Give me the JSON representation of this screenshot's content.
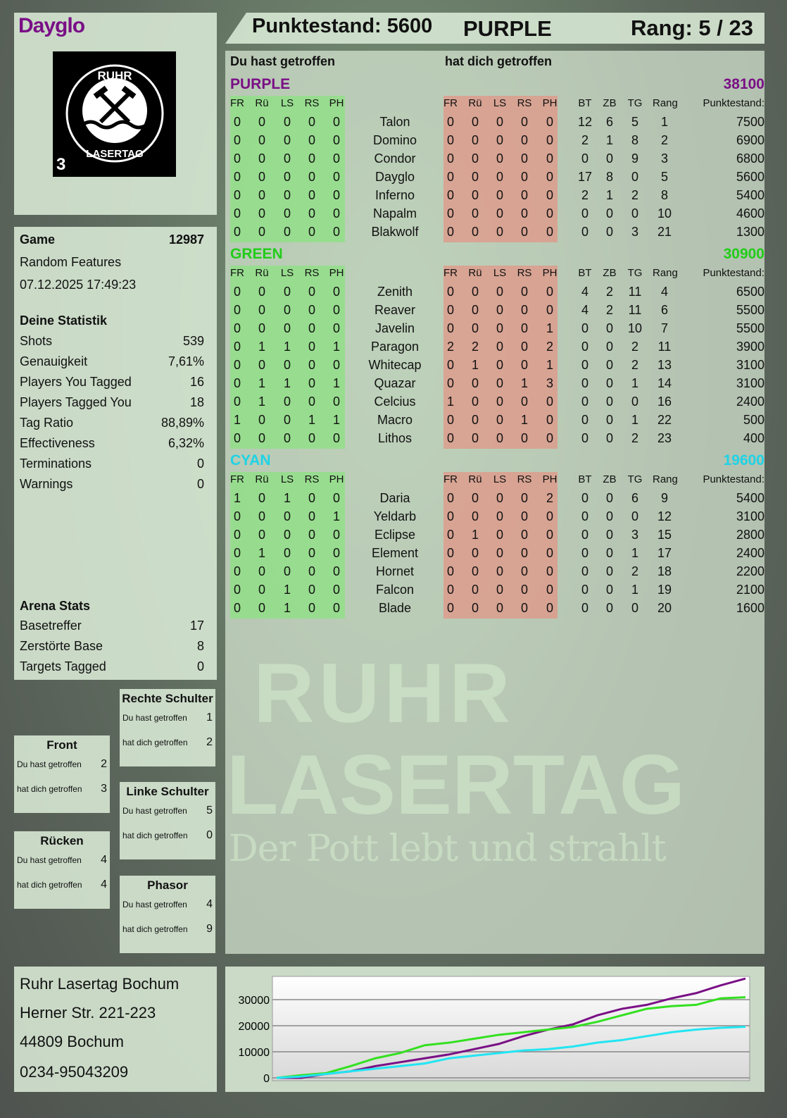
{
  "player": {
    "name": "Dayglo",
    "name_color": "#7a0f86"
  },
  "header": {
    "score": "Punktestand: 5600",
    "team": "PURPLE",
    "rank": "Rang: 5 / 23"
  },
  "logo": {
    "text_top": "RUHR",
    "text_bottom": "LASERTAG",
    "number": "3"
  },
  "watermark": {
    "line1": "RUHR",
    "line2": "LASERTAG",
    "line3": "Der Pott lebt und strahlt"
  },
  "game": {
    "label": "Game",
    "id": "12987",
    "mode": "Random Features",
    "datetime": "07.12.2025 17:49:23"
  },
  "stats": {
    "title": "Deine Statistik",
    "items": [
      {
        "label": "Shots",
        "value": "539"
      },
      {
        "label": "Genauigkeit",
        "value": "7,61%"
      },
      {
        "label": "Players You Tagged",
        "value": "16"
      },
      {
        "label": "Players Tagged You",
        "value": "18"
      },
      {
        "label": "Tag Ratio",
        "value": "88,89%"
      },
      {
        "label": "Effectiveness",
        "value": "6,32%"
      },
      {
        "label": "Terminations",
        "value": "0"
      },
      {
        "label": "Warnings",
        "value": "0"
      }
    ]
  },
  "arena": {
    "title": "Arena Stats",
    "items": [
      {
        "label": "Basetreffer",
        "value": "17"
      },
      {
        "label": "Zerstörte Base",
        "value": "8"
      },
      {
        "label": "Targets Tagged",
        "value": "0"
      }
    ]
  },
  "body_parts": [
    {
      "title": "Rechte Schulter",
      "you_hit_label": "Du hast getroffen",
      "you_hit": "1",
      "hit_you_label": "hat dich getroffen",
      "hit_you": "2"
    },
    {
      "title": "Front",
      "you_hit_label": "Du hast getroffen",
      "you_hit": "2",
      "hit_you_label": "hat dich getroffen",
      "hit_you": "3"
    },
    {
      "title": "Linke Schulter",
      "you_hit_label": "Du hast getroffen",
      "you_hit": "5",
      "hit_you_label": "hat dich getroffen",
      "hit_you": "0"
    },
    {
      "title": "Rücken",
      "you_hit_label": "Du hast getroffen",
      "you_hit": "4",
      "hit_you_label": "hat dich getroffen",
      "hit_you": "4"
    },
    {
      "title": "Phasor",
      "you_hit_label": "Du hast getroffen",
      "you_hit": "4",
      "hit_you_label": "hat dich getroffen",
      "hit_you": "9"
    }
  ],
  "address": {
    "line1": "Ruhr Lasertag Bochum",
    "line2": "Herner Str. 221-223",
    "line3": "44809 Bochum",
    "line4": "0234-95043209"
  },
  "table": {
    "you_hit_label": "Du hast getroffen",
    "hit_you_label": "hat dich getroffen",
    "columns": {
      "hits": [
        "FR",
        "Rü",
        "LS",
        "RS",
        "PH"
      ],
      "stats": [
        "BT",
        "ZB",
        "TG",
        "Rang"
      ],
      "score": "Punktestand:"
    },
    "teams": [
      {
        "name": "PURPLE",
        "score": "38100",
        "color": "#7a0f86",
        "players": [
          {
            "name": "Talon",
            "hit": [
              0,
              0,
              0,
              0,
              0
            ],
            "got": [
              0,
              0,
              0,
              0,
              0
            ],
            "bt": 12,
            "zb": 6,
            "tg": 5,
            "rang": 1,
            "score": 7500
          },
          {
            "name": "Domino",
            "hit": [
              0,
              0,
              0,
              0,
              0
            ],
            "got": [
              0,
              0,
              0,
              0,
              0
            ],
            "bt": 2,
            "zb": 1,
            "tg": 8,
            "rang": 2,
            "score": 6900
          },
          {
            "name": "Condor",
            "hit": [
              0,
              0,
              0,
              0,
              0
            ],
            "got": [
              0,
              0,
              0,
              0,
              0
            ],
            "bt": 0,
            "zb": 0,
            "tg": 9,
            "rang": 3,
            "score": 6800
          },
          {
            "name": "Dayglo",
            "hit": [
              0,
              0,
              0,
              0,
              0
            ],
            "got": [
              0,
              0,
              0,
              0,
              0
            ],
            "bt": 17,
            "zb": 8,
            "tg": 0,
            "rang": 5,
            "score": 5600
          },
          {
            "name": "Inferno",
            "hit": [
              0,
              0,
              0,
              0,
              0
            ],
            "got": [
              0,
              0,
              0,
              0,
              0
            ],
            "bt": 2,
            "zb": 1,
            "tg": 2,
            "rang": 8,
            "score": 5400
          },
          {
            "name": "Napalm",
            "hit": [
              0,
              0,
              0,
              0,
              0
            ],
            "got": [
              0,
              0,
              0,
              0,
              0
            ],
            "bt": 0,
            "zb": 0,
            "tg": 0,
            "rang": 10,
            "score": 4600
          },
          {
            "name": "Blakwolf",
            "hit": [
              0,
              0,
              0,
              0,
              0
            ],
            "got": [
              0,
              0,
              0,
              0,
              0
            ],
            "bt": 0,
            "zb": 0,
            "tg": 3,
            "rang": 21,
            "score": 1300
          }
        ]
      },
      {
        "name": "GREEN",
        "score": "30900",
        "color": "#22cc1a",
        "players": [
          {
            "name": "Zenith",
            "hit": [
              0,
              0,
              0,
              0,
              0
            ],
            "got": [
              0,
              0,
              0,
              0,
              0
            ],
            "bt": 4,
            "zb": 2,
            "tg": 11,
            "rang": 4,
            "score": 6500
          },
          {
            "name": "Reaver",
            "hit": [
              0,
              0,
              0,
              0,
              0
            ],
            "got": [
              0,
              0,
              0,
              0,
              0
            ],
            "bt": 4,
            "zb": 2,
            "tg": 11,
            "rang": 6,
            "score": 5500
          },
          {
            "name": "Javelin",
            "hit": [
              0,
              0,
              0,
              0,
              0
            ],
            "got": [
              0,
              0,
              0,
              0,
              1
            ],
            "bt": 0,
            "zb": 0,
            "tg": 10,
            "rang": 7,
            "score": 5500
          },
          {
            "name": "Paragon",
            "hit": [
              0,
              1,
              1,
              0,
              1
            ],
            "got": [
              2,
              2,
              0,
              0,
              2
            ],
            "bt": 0,
            "zb": 0,
            "tg": 2,
            "rang": 11,
            "score": 3900
          },
          {
            "name": "Whitecap",
            "hit": [
              0,
              0,
              0,
              0,
              0
            ],
            "got": [
              0,
              1,
              0,
              0,
              1
            ],
            "bt": 0,
            "zb": 0,
            "tg": 2,
            "rang": 13,
            "score": 3100
          },
          {
            "name": "Quazar",
            "hit": [
              0,
              1,
              1,
              0,
              1
            ],
            "got": [
              0,
              0,
              0,
              1,
              3
            ],
            "bt": 0,
            "zb": 0,
            "tg": 1,
            "rang": 14,
            "score": 3100
          },
          {
            "name": "Celcius",
            "hit": [
              0,
              1,
              0,
              0,
              0
            ],
            "got": [
              1,
              0,
              0,
              0,
              0
            ],
            "bt": 0,
            "zb": 0,
            "tg": 0,
            "rang": 16,
            "score": 2400
          },
          {
            "name": "Macro",
            "hit": [
              1,
              0,
              0,
              1,
              1
            ],
            "got": [
              0,
              0,
              0,
              1,
              0
            ],
            "bt": 0,
            "zb": 0,
            "tg": 1,
            "rang": 22,
            "score": 500
          },
          {
            "name": "Lithos",
            "hit": [
              0,
              0,
              0,
              0,
              0
            ],
            "got": [
              0,
              0,
              0,
              0,
              0
            ],
            "bt": 0,
            "zb": 0,
            "tg": 2,
            "rang": 23,
            "score": 400
          }
        ]
      },
      {
        "name": "CYAN",
        "score": "19600",
        "color": "#1ed3e6",
        "players": [
          {
            "name": "Daria",
            "hit": [
              1,
              0,
              1,
              0,
              0
            ],
            "got": [
              0,
              0,
              0,
              0,
              2
            ],
            "bt": 0,
            "zb": 0,
            "tg": 6,
            "rang": 9,
            "score": 5400
          },
          {
            "name": "Yeldarb",
            "hit": [
              0,
              0,
              0,
              0,
              1
            ],
            "got": [
              0,
              0,
              0,
              0,
              0
            ],
            "bt": 0,
            "zb": 0,
            "tg": 0,
            "rang": 12,
            "score": 3100
          },
          {
            "name": "Eclipse",
            "hit": [
              0,
              0,
              0,
              0,
              0
            ],
            "got": [
              0,
              1,
              0,
              0,
              0
            ],
            "bt": 0,
            "zb": 0,
            "tg": 3,
            "rang": 15,
            "score": 2800
          },
          {
            "name": "Element",
            "hit": [
              0,
              1,
              0,
              0,
              0
            ],
            "got": [
              0,
              0,
              0,
              0,
              0
            ],
            "bt": 0,
            "zb": 0,
            "tg": 1,
            "rang": 17,
            "score": 2400
          },
          {
            "name": "Hornet",
            "hit": [
              0,
              0,
              0,
              0,
              0
            ],
            "got": [
              0,
              0,
              0,
              0,
              0
            ],
            "bt": 0,
            "zb": 0,
            "tg": 2,
            "rang": 18,
            "score": 2200
          },
          {
            "name": "Falcon",
            "hit": [
              0,
              0,
              1,
              0,
              0
            ],
            "got": [
              0,
              0,
              0,
              0,
              0
            ],
            "bt": 0,
            "zb": 0,
            "tg": 1,
            "rang": 19,
            "score": 2100
          },
          {
            "name": "Blade",
            "hit": [
              0,
              0,
              1,
              0,
              0
            ],
            "got": [
              0,
              0,
              0,
              0,
              0
            ],
            "bt": 0,
            "zb": 0,
            "tg": 0,
            "rang": 20,
            "score": 1600
          }
        ]
      }
    ]
  },
  "chart_data": {
    "type": "line",
    "title": "",
    "xlabel": "",
    "ylabel": "",
    "ylim": [
      0,
      40000
    ],
    "yticks": [
      0,
      10000,
      20000,
      30000
    ],
    "grid": true,
    "legend": "none",
    "x": [
      0,
      1,
      2,
      3,
      4,
      5,
      6,
      7,
      8,
      9,
      10,
      11,
      12,
      13,
      14,
      15,
      16,
      17,
      18,
      19
    ],
    "series": [
      {
        "color": "#7a0f86",
        "values": [
          0,
          0,
          1500,
          2500,
          4500,
          6000,
          7500,
          9000,
          11000,
          13000,
          16000,
          18500,
          20500,
          24000,
          26500,
          28000,
          30500,
          32500,
          35500,
          38100
        ]
      },
      {
        "color": "#33e01f",
        "values": [
          0,
          1000,
          1800,
          4500,
          7500,
          9500,
          12500,
          13500,
          15000,
          16500,
          17500,
          18500,
          19500,
          21500,
          24000,
          26500,
          27500,
          28000,
          30500,
          30900
        ]
      },
      {
        "color": "#22e5f2",
        "values": [
          0,
          500,
          1500,
          2500,
          3500,
          4500,
          5500,
          7500,
          8500,
          9500,
          10500,
          11000,
          12000,
          13500,
          14500,
          16000,
          17500,
          18500,
          19200,
          19600
        ]
      }
    ]
  }
}
